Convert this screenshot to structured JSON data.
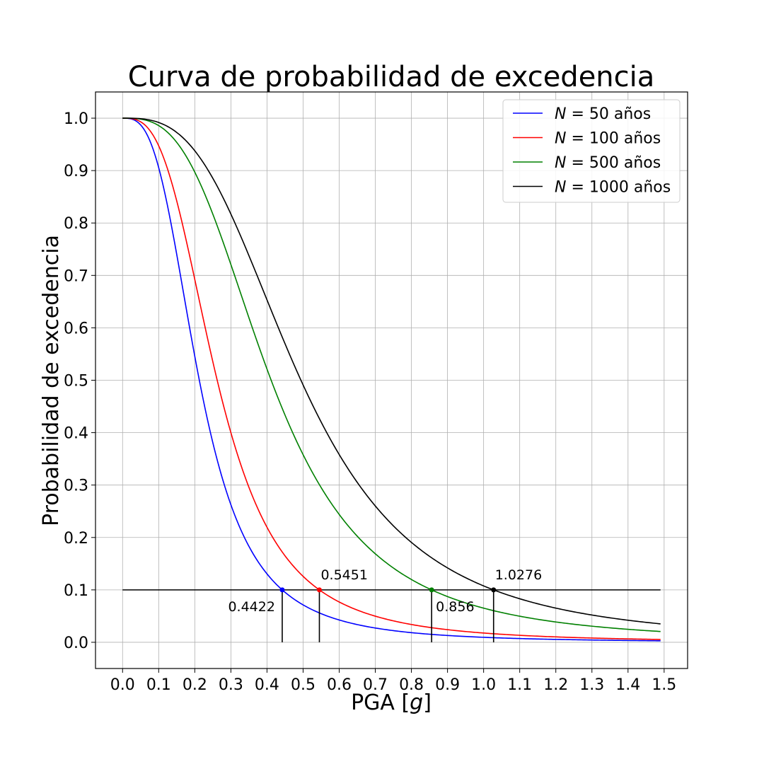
{
  "chart_data": {
    "type": "line",
    "title": "Curva de probabilidad de excedencia",
    "xlabel_prefix": "PGA [",
    "xlabel_var": "g",
    "xlabel_suffix": "]",
    "ylabel": "Probabilidad de excedencia",
    "xlim": [
      -0.075,
      1.565
    ],
    "ylim": [
      -0.05,
      1.05
    ],
    "xticks": [
      "0.0",
      "0.1",
      "0.2",
      "0.3",
      "0.4",
      "0.5",
      "0.6",
      "0.7",
      "0.8",
      "0.9",
      "1.0",
      "1.1",
      "1.2",
      "1.3",
      "1.4",
      "1.5"
    ],
    "yticks": [
      "0.0",
      "0.1",
      "0.2",
      "0.3",
      "0.4",
      "0.5",
      "0.6",
      "0.7",
      "0.8",
      "0.9",
      "1.0"
    ],
    "grid": true,
    "legend_position": "top-right",
    "x_range": [
      0.0,
      1.49
    ],
    "threshold": {
      "y": 0.1,
      "x_start": 0.0,
      "x_end": 1.49,
      "color": "#000000"
    },
    "series": [
      {
        "name_var": "N",
        "name_rest": " = 50 años",
        "color": "#0000ff",
        "x0": 0.4422,
        "shape": 3.0,
        "marker_x": 0.4422,
        "marker_y": 0.1,
        "annotation": "0.4422",
        "annotation_pos": "below-left"
      },
      {
        "name_var": "N",
        "name_rest": " = 100 años",
        "color": "#ff0000",
        "x0": 0.5451,
        "shape": 3.0,
        "marker_x": 0.5451,
        "marker_y": 0.1,
        "annotation": "0.5451",
        "annotation_pos": "above-right"
      },
      {
        "name_var": "N",
        "name_rest": " = 500 años",
        "color": "#008000",
        "x0": 0.856,
        "shape": 3.0,
        "marker_x": 0.856,
        "marker_y": 0.1,
        "annotation": "0.856",
        "annotation_pos": "below-right"
      },
      {
        "name_var": "N",
        "name_rest": " = 1000 años",
        "color": "#000000",
        "x0": 1.0276,
        "shape": 3.0,
        "marker_x": 1.0276,
        "marker_y": 0.1,
        "annotation": "1.0276",
        "annotation_pos": "above-right"
      }
    ]
  }
}
